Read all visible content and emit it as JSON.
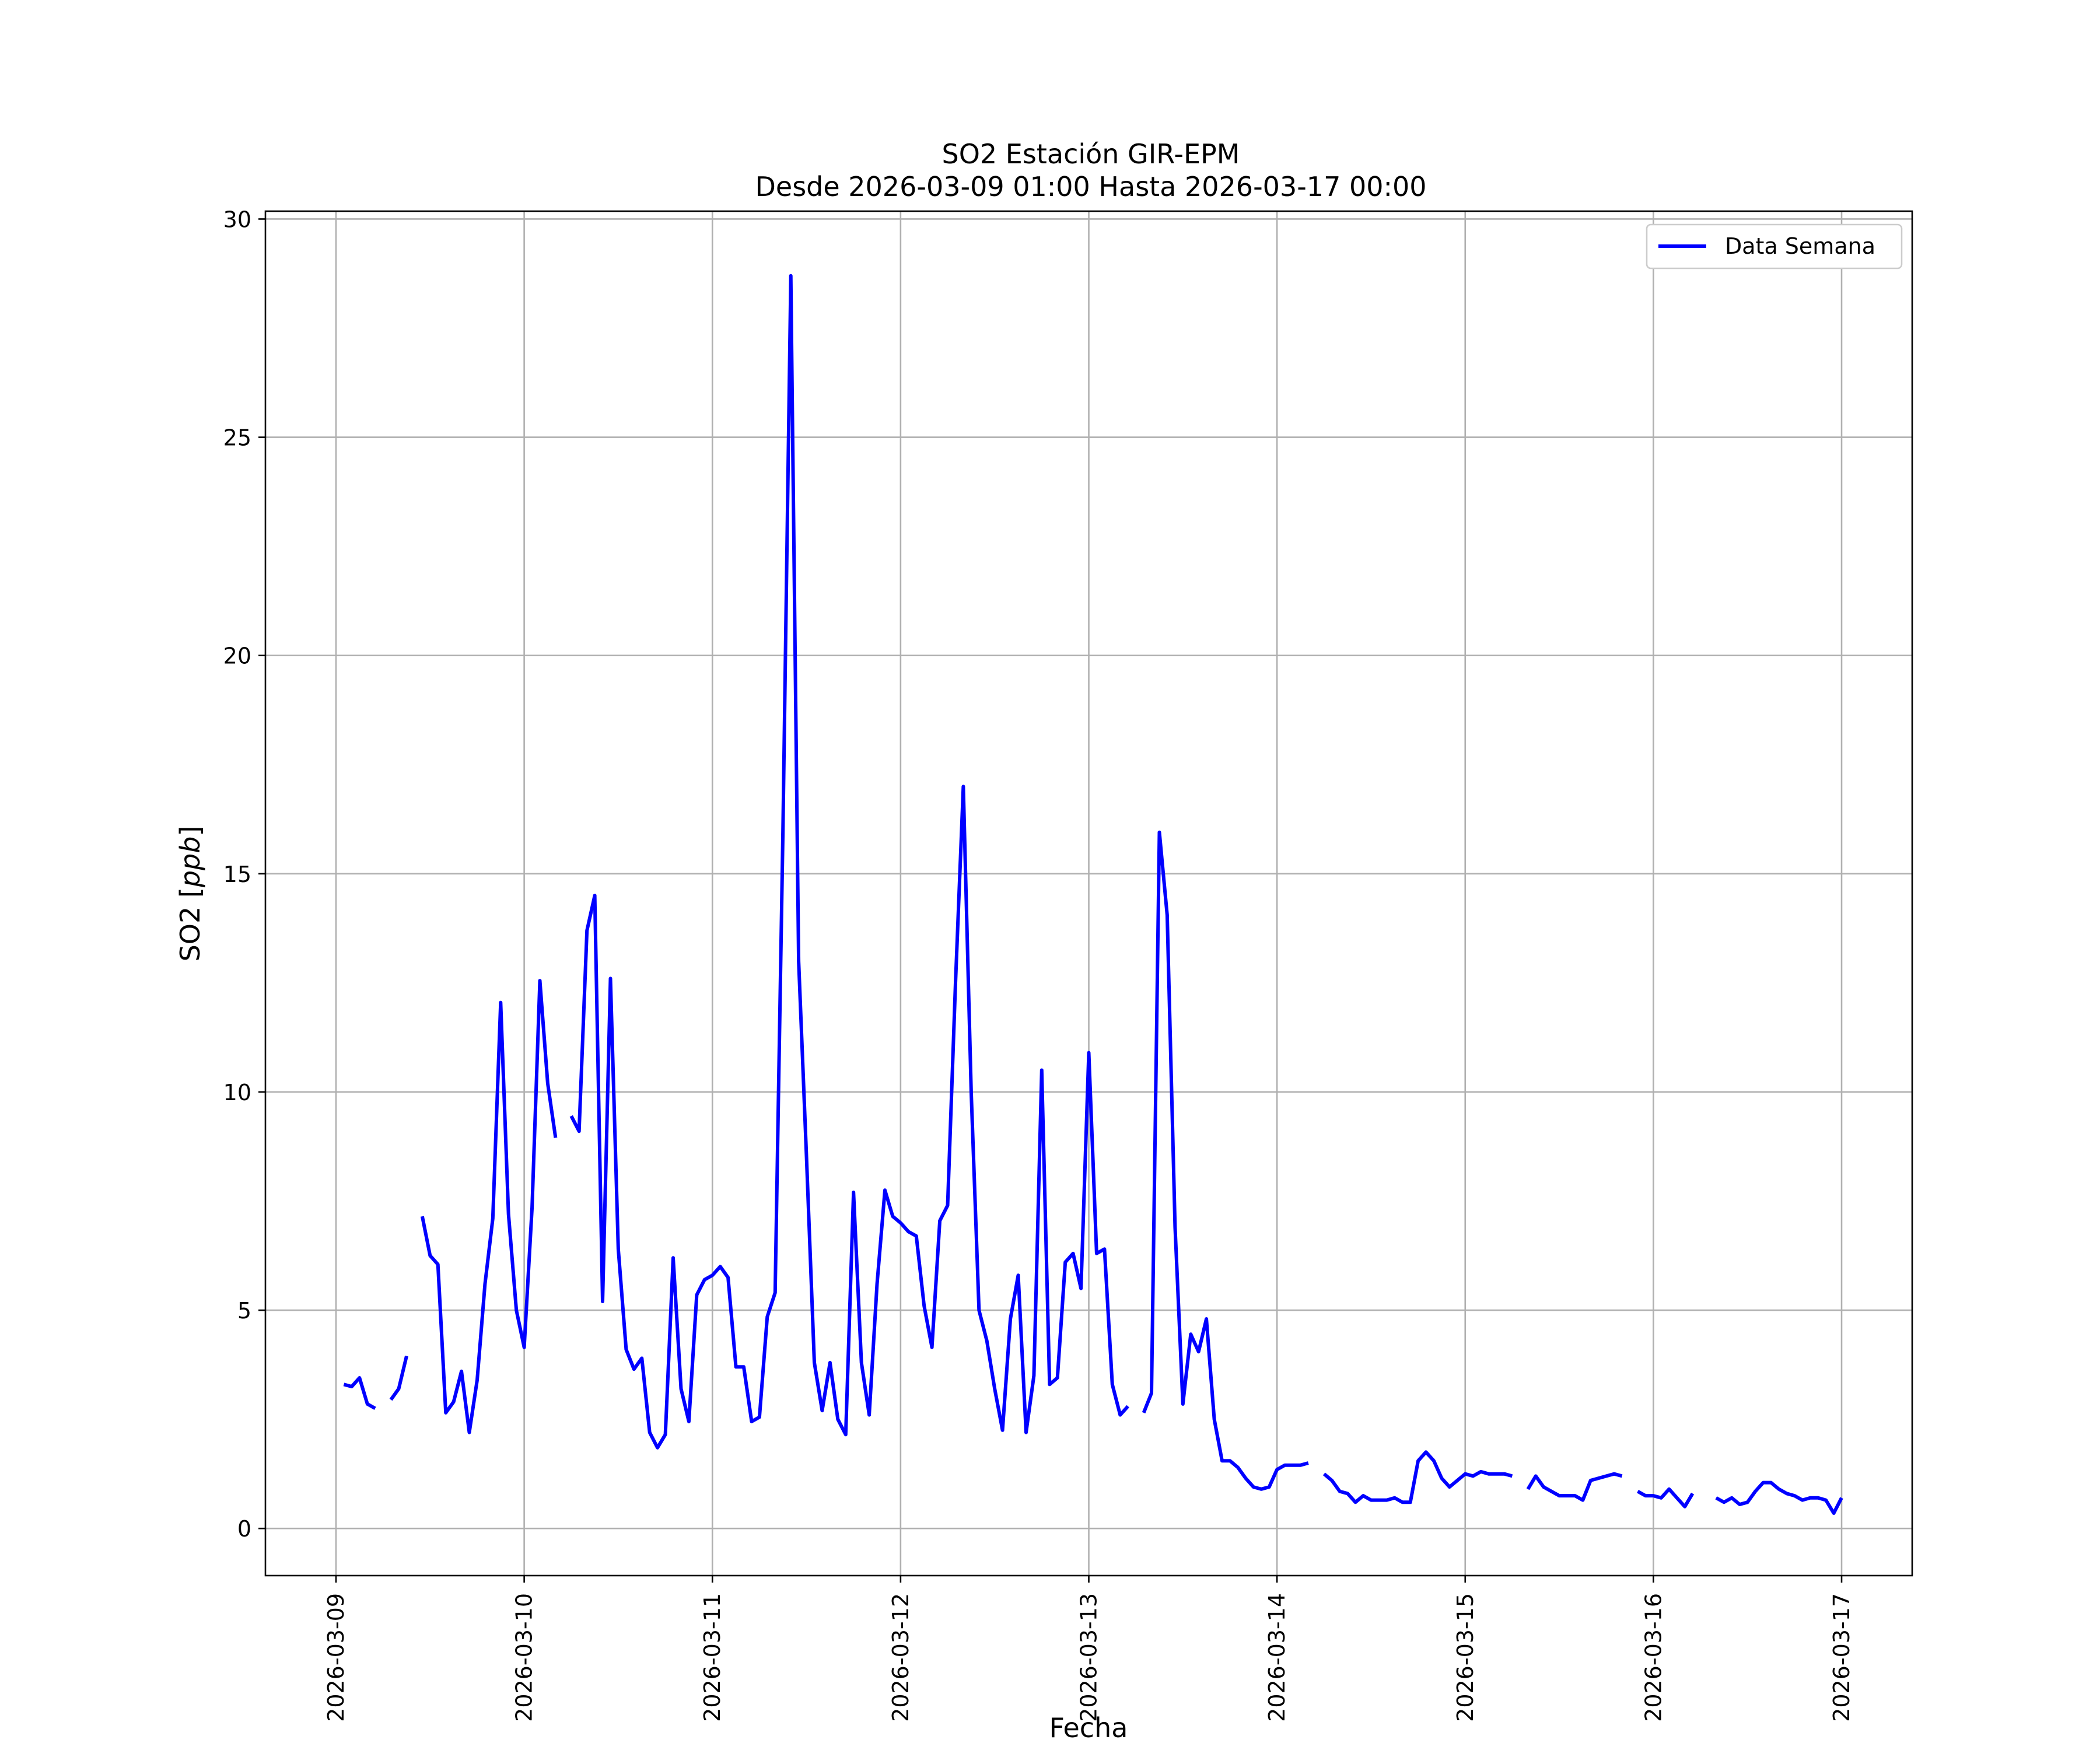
{
  "chart_data": {
    "type": "line",
    "title": "SO2 Estación GIR-EPM",
    "subtitle": "Desde 2026-03-09 01:00 Hasta 2026-03-17 00:00",
    "xlabel": "Fecha",
    "ylabel_prefix": "SO2 [",
    "ylabel_unit": "ppb",
    "ylabel_suffix": "]",
    "xlim": [
      "2026-03-08 15:00",
      "2026-03-17 09:00"
    ],
    "ylim": [
      -1.08,
      30.18
    ],
    "grid": true,
    "legend_position": "top-right",
    "x_ticks": [
      "2026-03-09",
      "2026-03-10",
      "2026-03-11",
      "2026-03-12",
      "2026-03-13",
      "2026-03-14",
      "2026-03-15",
      "2026-03-16",
      "2026-03-17"
    ],
    "y_ticks": [
      0,
      5,
      10,
      15,
      20,
      25,
      30
    ],
    "series": [
      {
        "name": "Data Semana",
        "color": "#0000ff",
        "segments": [
          [
            [
              "2026-03-09 01:00",
              3.3
            ],
            [
              "2026-03-09 02:00",
              3.25
            ],
            [
              "2026-03-09 03:00",
              3.45
            ],
            [
              "2026-03-09 04:00",
              2.85
            ],
            [
              "2026-03-09 05:00",
              2.75
            ]
          ],
          [
            [
              "2026-03-09 07:00",
              2.95
            ],
            [
              "2026-03-09 08:00",
              3.2
            ],
            [
              "2026-03-09 09:00",
              3.95
            ]
          ],
          [
            [
              "2026-03-09 11:00",
              7.15
            ],
            [
              "2026-03-09 12:00",
              6.25
            ],
            [
              "2026-03-09 13:00",
              6.05
            ],
            [
              "2026-03-09 14:00",
              2.65
            ],
            [
              "2026-03-09 15:00",
              2.9
            ],
            [
              "2026-03-09 16:00",
              3.6
            ],
            [
              "2026-03-09 17:00",
              2.2
            ],
            [
              "2026-03-09 18:00",
              3.4
            ],
            [
              "2026-03-09 19:00",
              5.6
            ],
            [
              "2026-03-09 20:00",
              7.1
            ],
            [
              "2026-03-09 21:00",
              12.05
            ],
            [
              "2026-03-09 22:00",
              7.2
            ],
            [
              "2026-03-09 23:00",
              5.0
            ],
            [
              "2026-03-10 00:00",
              4.15
            ],
            [
              "2026-03-10 01:00",
              7.35
            ],
            [
              "2026-03-10 02:00",
              12.55
            ],
            [
              "2026-03-10 03:00",
              10.2
            ],
            [
              "2026-03-10 04:00",
              8.95
            ]
          ],
          [
            [
              "2026-03-10 06:00",
              9.45
            ],
            [
              "2026-03-10 07:00",
              9.1
            ],
            [
              "2026-03-10 08:00",
              13.7
            ],
            [
              "2026-03-10 09:00",
              14.5
            ],
            [
              "2026-03-10 10:00",
              5.2
            ],
            [
              "2026-03-10 11:00",
              12.6
            ],
            [
              "2026-03-10 12:00",
              6.4
            ],
            [
              "2026-03-10 13:00",
              4.1
            ],
            [
              "2026-03-10 14:00",
              3.65
            ],
            [
              "2026-03-10 15:00",
              3.9
            ],
            [
              "2026-03-10 16:00",
              2.2
            ],
            [
              "2026-03-10 17:00",
              1.85
            ],
            [
              "2026-03-10 18:00",
              2.15
            ],
            [
              "2026-03-10 19:00",
              6.2
            ],
            [
              "2026-03-10 20:00",
              3.2
            ],
            [
              "2026-03-10 21:00",
              2.45
            ],
            [
              "2026-03-10 22:00",
              5.35
            ],
            [
              "2026-03-10 23:00",
              5.7
            ],
            [
              "2026-03-11 00:00",
              5.8
            ],
            [
              "2026-03-11 01:00",
              6.0
            ],
            [
              "2026-03-11 02:00",
              5.75
            ],
            [
              "2026-03-11 03:00",
              3.7
            ],
            [
              "2026-03-11 04:00",
              3.7
            ],
            [
              "2026-03-11 05:00",
              2.45
            ],
            [
              "2026-03-11 06:00",
              2.55
            ],
            [
              "2026-03-11 07:00",
              4.85
            ],
            [
              "2026-03-11 08:00",
              5.4
            ],
            [
              "2026-03-11 09:00",
              16.0
            ],
            [
              "2026-03-11 10:00",
              28.7
            ],
            [
              "2026-03-11 11:00",
              13.0
            ],
            [
              "2026-03-11 12:00",
              8.5
            ],
            [
              "2026-03-11 13:00",
              3.8
            ],
            [
              "2026-03-11 14:00",
              2.7
            ],
            [
              "2026-03-11 15:00",
              3.8
            ],
            [
              "2026-03-11 16:00",
              2.5
            ],
            [
              "2026-03-11 17:00",
              2.15
            ],
            [
              "2026-03-11 18:00",
              7.7
            ],
            [
              "2026-03-11 19:00",
              3.8
            ],
            [
              "2026-03-11 20:00",
              2.6
            ],
            [
              "2026-03-11 21:00",
              5.6
            ],
            [
              "2026-03-11 22:00",
              7.75
            ],
            [
              "2026-03-11 23:00",
              7.15
            ],
            [
              "2026-03-12 00:00",
              7.0
            ],
            [
              "2026-03-12 01:00",
              6.8
            ],
            [
              "2026-03-12 02:00",
              6.7
            ],
            [
              "2026-03-12 03:00",
              5.1
            ],
            [
              "2026-03-12 04:00",
              4.15
            ],
            [
              "2026-03-12 05:00",
              7.05
            ],
            [
              "2026-03-12 06:00",
              7.4
            ],
            [
              "2026-03-12 07:00",
              12.5
            ],
            [
              "2026-03-12 08:00",
              17.0
            ],
            [
              "2026-03-12 09:00",
              10.0
            ],
            [
              "2026-03-12 10:00",
              5.0
            ],
            [
              "2026-03-12 11:00",
              4.3
            ],
            [
              "2026-03-12 12:00",
              3.2
            ],
            [
              "2026-03-12 13:00",
              2.25
            ],
            [
              "2026-03-12 14:00",
              4.8
            ],
            [
              "2026-03-12 15:00",
              5.8
            ],
            [
              "2026-03-12 16:00",
              2.2
            ],
            [
              "2026-03-12 17:00",
              3.5
            ],
            [
              "2026-03-12 18:00",
              10.5
            ],
            [
              "2026-03-12 19:00",
              3.3
            ],
            [
              "2026-03-12 20:00",
              3.45
            ],
            [
              "2026-03-12 21:00",
              6.1
            ],
            [
              "2026-03-12 22:00",
              6.3
            ],
            [
              "2026-03-12 23:00",
              5.5
            ],
            [
              "2026-03-13 00:00",
              10.9
            ],
            [
              "2026-03-13 01:00",
              6.3
            ],
            [
              "2026-03-13 02:00",
              6.4
            ],
            [
              "2026-03-13 03:00",
              3.3
            ],
            [
              "2026-03-13 04:00",
              2.6
            ],
            [
              "2026-03-13 05:00",
              2.8
            ]
          ],
          [
            [
              "2026-03-13 07:00",
              2.65
            ],
            [
              "2026-03-13 08:00",
              3.1
            ],
            [
              "2026-03-13 09:00",
              15.95
            ],
            [
              "2026-03-13 10:00",
              14.05
            ],
            [
              "2026-03-13 11:00",
              6.9
            ],
            [
              "2026-03-13 12:00",
              2.85
            ],
            [
              "2026-03-13 13:00",
              4.45
            ],
            [
              "2026-03-13 14:00",
              4.05
            ],
            [
              "2026-03-13 15:00",
              4.8
            ],
            [
              "2026-03-13 16:00",
              2.5
            ],
            [
              "2026-03-13 17:00",
              1.55
            ],
            [
              "2026-03-13 18:00",
              1.55
            ],
            [
              "2026-03-13 19:00",
              1.4
            ],
            [
              "2026-03-13 20:00",
              1.15
            ],
            [
              "2026-03-13 21:00",
              0.95
            ],
            [
              "2026-03-13 22:00",
              0.9
            ],
            [
              "2026-03-13 23:00",
              0.95
            ],
            [
              "2026-03-14 00:00",
              1.35
            ],
            [
              "2026-03-14 01:00",
              1.45
            ],
            [
              "2026-03-14 02:00",
              1.45
            ],
            [
              "2026-03-14 03:00",
              1.45
            ],
            [
              "2026-03-14 04:00",
              1.5
            ]
          ],
          [
            [
              "2026-03-14 06:00",
              1.25
            ],
            [
              "2026-03-14 07:00",
              1.1
            ],
            [
              "2026-03-14 08:00",
              0.85
            ],
            [
              "2026-03-14 09:00",
              0.8
            ],
            [
              "2026-03-14 10:00",
              0.6
            ],
            [
              "2026-03-14 11:00",
              0.75
            ],
            [
              "2026-03-14 12:00",
              0.65
            ],
            [
              "2026-03-14 13:00",
              0.65
            ],
            [
              "2026-03-14 14:00",
              0.65
            ],
            [
              "2026-03-14 15:00",
              0.7
            ],
            [
              "2026-03-14 16:00",
              0.6
            ],
            [
              "2026-03-14 17:00",
              0.6
            ],
            [
              "2026-03-14 18:00",
              1.55
            ],
            [
              "2026-03-14 19:00",
              1.75
            ],
            [
              "2026-03-14 20:00",
              1.55
            ],
            [
              "2026-03-14 21:00",
              1.15
            ],
            [
              "2026-03-14 22:00",
              0.95
            ],
            [
              "2026-03-14 23:00",
              1.1
            ],
            [
              "2026-03-15 00:00",
              1.25
            ],
            [
              "2026-03-15 01:00",
              1.2
            ],
            [
              "2026-03-15 02:00",
              1.3
            ],
            [
              "2026-03-15 03:00",
              1.25
            ],
            [
              "2026-03-15 04:00",
              1.25
            ],
            [
              "2026-03-15 05:00",
              1.25
            ],
            [
              "2026-03-15 06:00",
              1.2
            ]
          ],
          [
            [
              "2026-03-15 08:00",
              0.9
            ],
            [
              "2026-03-15 09:00",
              1.2
            ],
            [
              "2026-03-15 10:00",
              0.95
            ],
            [
              "2026-03-15 11:00",
              0.85
            ],
            [
              "2026-03-15 12:00",
              0.75
            ],
            [
              "2026-03-15 13:00",
              0.75
            ],
            [
              "2026-03-15 14:00",
              0.75
            ],
            [
              "2026-03-15 15:00",
              0.65
            ],
            [
              "2026-03-15 16:00",
              1.1
            ],
            [
              "2026-03-15 17:00",
              1.15
            ],
            [
              "2026-03-15 18:00",
              1.2
            ],
            [
              "2026-03-15 19:00",
              1.25
            ],
            [
              "2026-03-15 20:00",
              1.2
            ]
          ],
          [
            [
              "2026-03-15 22:00",
              0.85
            ],
            [
              "2026-03-15 23:00",
              0.75
            ],
            [
              "2026-03-16 00:00",
              0.75
            ],
            [
              "2026-03-16 01:00",
              0.7
            ],
            [
              "2026-03-16 02:00",
              0.9
            ],
            [
              "2026-03-16 03:00",
              0.7
            ],
            [
              "2026-03-16 04:00",
              0.5
            ],
            [
              "2026-03-16 05:00",
              0.8
            ]
          ],
          [
            [
              "2026-03-16 08:00",
              0.7
            ],
            [
              "2026-03-16 09:00",
              0.6
            ],
            [
              "2026-03-16 10:00",
              0.7
            ],
            [
              "2026-03-16 11:00",
              0.55
            ],
            [
              "2026-03-16 12:00",
              0.6
            ],
            [
              "2026-03-16 13:00",
              0.85
            ],
            [
              "2026-03-16 14:00",
              1.05
            ],
            [
              "2026-03-16 15:00",
              1.05
            ],
            [
              "2026-03-16 16:00",
              0.9
            ],
            [
              "2026-03-16 17:00",
              0.8
            ],
            [
              "2026-03-16 18:00",
              0.75
            ],
            [
              "2026-03-16 19:00",
              0.65
            ],
            [
              "2026-03-16 20:00",
              0.7
            ],
            [
              "2026-03-16 21:00",
              0.7
            ],
            [
              "2026-03-16 22:00",
              0.65
            ],
            [
              "2026-03-16 23:00",
              0.35
            ],
            [
              "2026-03-17 00:00",
              0.7
            ]
          ]
        ]
      }
    ]
  }
}
